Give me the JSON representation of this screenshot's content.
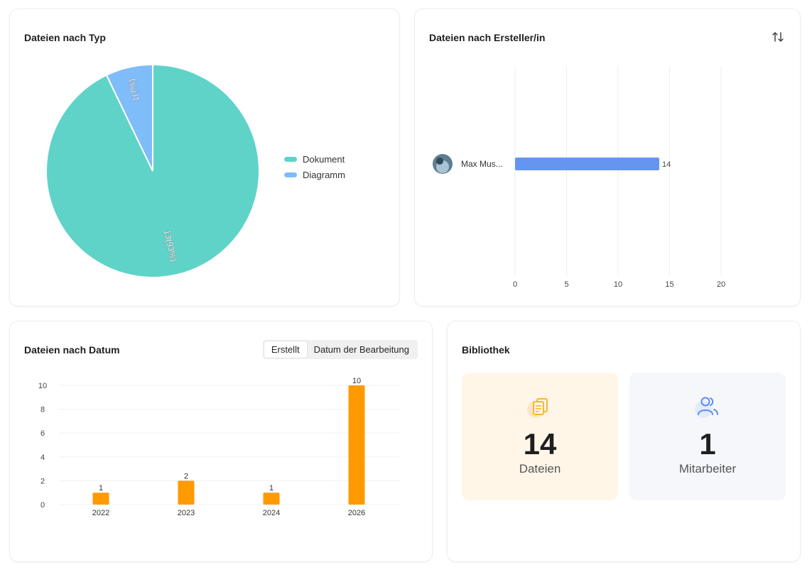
{
  "cards": {
    "type": {
      "title": "Dateien nach Typ"
    },
    "author": {
      "title": "Dateien nach Ersteller/in"
    },
    "date": {
      "title": "Dateien nach Datum",
      "toggle": {
        "created_label": "Erstellt",
        "edited_label": "Datum der Bearbeitung",
        "selected": "Erstellt"
      }
    },
    "library": {
      "title": "Bibliothek",
      "files": {
        "value": "14",
        "label": "Dateien"
      },
      "members": {
        "value": "1",
        "label": "Mitarbeiter"
      }
    }
  },
  "colors": {
    "dokument": "#5fd3c8",
    "diagramm": "#7fbcfa",
    "author_bar": "#6495f0",
    "date_bar": "#ff9a00",
    "files_tile_bg": "#fff6e8",
    "members_tile_bg": "#f5f7fb",
    "files_icon": "#f5b82e",
    "members_icon": "#5b8def"
  },
  "chart_data": [
    {
      "type": "pie",
      "labels": [
        "Dokument",
        "Diagramm"
      ],
      "values": [
        13,
        1
      ],
      "data_labels": [
        "13(93%)",
        "1(7%)"
      ],
      "legend": "right"
    },
    {
      "type": "bar",
      "orientation": "horizontal",
      "categories": [
        "Max Mus..."
      ],
      "values": [
        14
      ],
      "xlim": [
        0,
        20
      ],
      "xticks": [
        "0",
        "5",
        "10",
        "15",
        "20"
      ],
      "grid": true
    },
    {
      "type": "bar",
      "categories": [
        "2022",
        "2023",
        "2024",
        "2026"
      ],
      "values": [
        1,
        2,
        1,
        10
      ],
      "ylim": [
        0,
        10
      ],
      "yticks": [
        "0",
        "2",
        "4",
        "6",
        "8",
        "10"
      ],
      "grid": true
    }
  ]
}
